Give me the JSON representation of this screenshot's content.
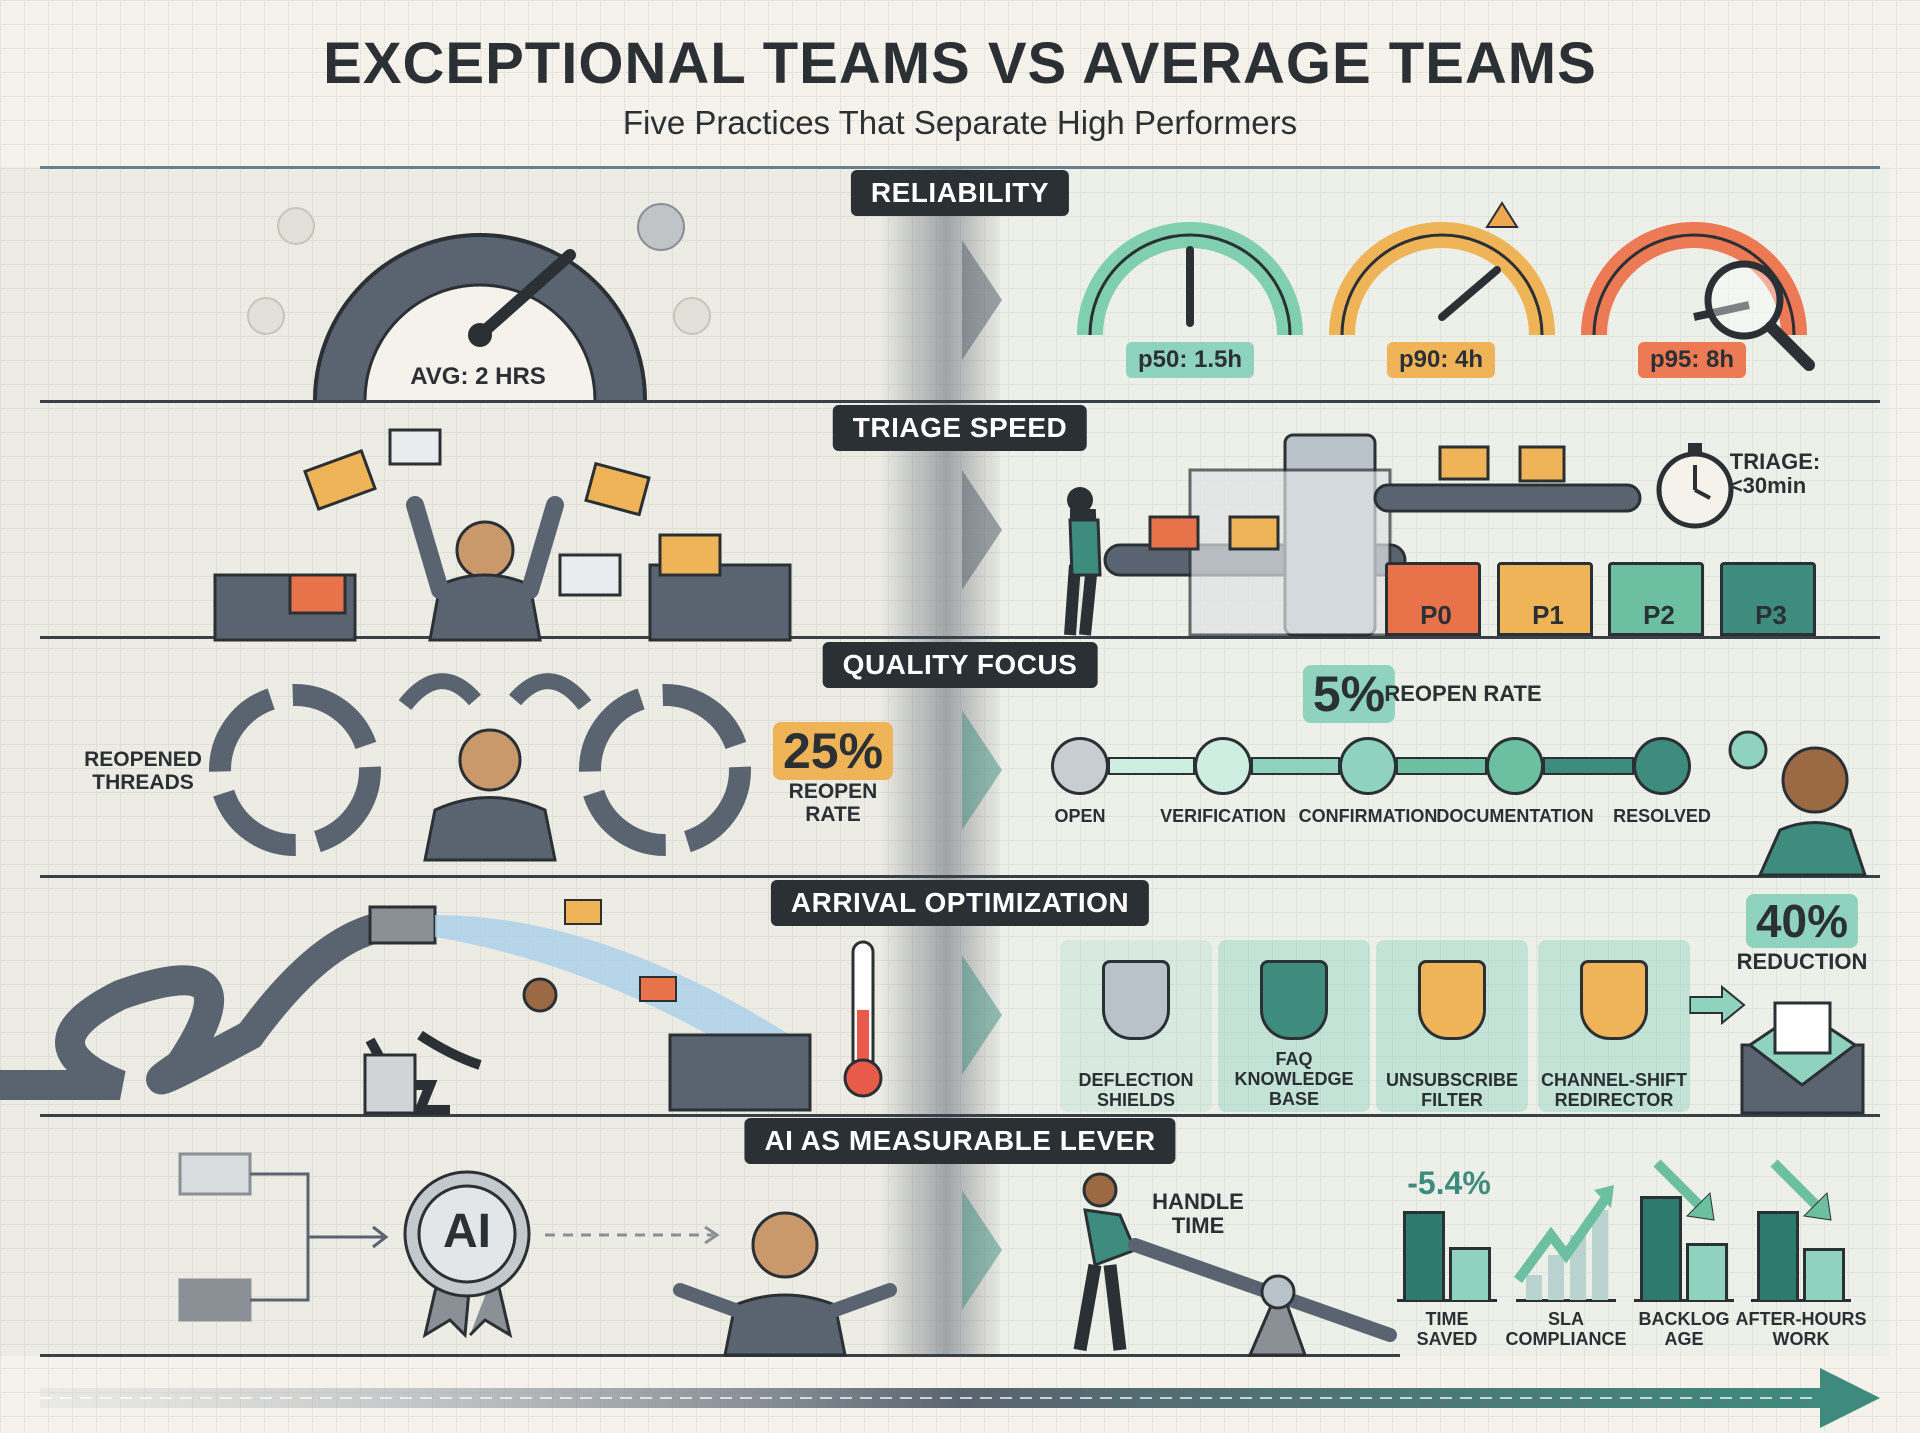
{
  "header": {
    "title": "EXCEPTIONAL TEAMS VS AVERAGE TEAMS",
    "subtitle": "Five Practices That Separate High Performers"
  },
  "colors": {
    "dark": "#2b3035",
    "teal": "#3d8c7e",
    "light_teal": "#8fd3bf",
    "orange": "#f0a850",
    "red_orange": "#e8734a",
    "grey": "#5a6470"
  },
  "sections": [
    {
      "label": "RELIABILITY",
      "average": {
        "gauge_label": "AVG: 2 HRS"
      },
      "exceptional": {
        "gauges": [
          {
            "label": "p50: 1.5h",
            "color": "#7fcfb0"
          },
          {
            "label": "p90: 4h",
            "color": "#f0b458"
          },
          {
            "label": "p95: 8h",
            "color": "#ec7a55"
          }
        ]
      }
    },
    {
      "label": "TRIAGE SPEED",
      "exceptional": {
        "timer_label": "TRIAGE:",
        "timer_value": "<30min",
        "bins": [
          {
            "label": "P0",
            "color": "#e8734a"
          },
          {
            "label": "P1",
            "color": "#f0b458"
          },
          {
            "label": "P2",
            "color": "#6cbfa0"
          },
          {
            "label": "P3",
            "color": "#3d8c7e"
          }
        ]
      }
    },
    {
      "label": "QUALITY FOCUS",
      "average": {
        "caption_line1": "REOPENED",
        "caption_line2": "THREADS",
        "rate_value": "25%",
        "rate_line1": "REOPEN",
        "rate_line2": "RATE"
      },
      "exceptional": {
        "rate_value": "5%",
        "rate_label": "REOPEN RATE",
        "steps": [
          "OPEN",
          "VERIFICATION",
          "CONFIRMATION",
          "DOCUMENTATION",
          "RESOLVED"
        ]
      }
    },
    {
      "label": "ARRIVAL OPTIMIZATION",
      "exceptional": {
        "filters": [
          {
            "line1": "DEFLECTION",
            "line2": "SHIELDS"
          },
          {
            "line0": "FAQ",
            "line1": "KNOWLEDGE",
            "line2": "BASE"
          },
          {
            "line1": "UNSUBSCRIBE",
            "line2": "FILTER"
          },
          {
            "line1": "CHANNEL-SHIFT",
            "line2": "REDIRECTOR"
          }
        ],
        "reduction_value": "40%",
        "reduction_label": "REDUCTION"
      }
    },
    {
      "label": "AI AS MEASURABLE LEVER",
      "average": {
        "badge": "AI"
      },
      "exceptional": {
        "lever_line1": "HANDLE",
        "lever_line2": "TIME",
        "headline": "-5.4%",
        "metrics": [
          {
            "line1": "TIME",
            "line2": "SAVED",
            "before": 70,
            "after": 42,
            "trend": "down"
          },
          {
            "line1": "SLA",
            "line2": "COMPLIANCE",
            "trend": "up"
          },
          {
            "line1": "BACKLOG",
            "line2": "AGE",
            "before": 82,
            "after": 45,
            "trend": "down"
          },
          {
            "line1": "AFTER-HOURS",
            "line2": "WORK",
            "before": 70,
            "after": 41,
            "trend": "down"
          }
        ]
      }
    }
  ]
}
